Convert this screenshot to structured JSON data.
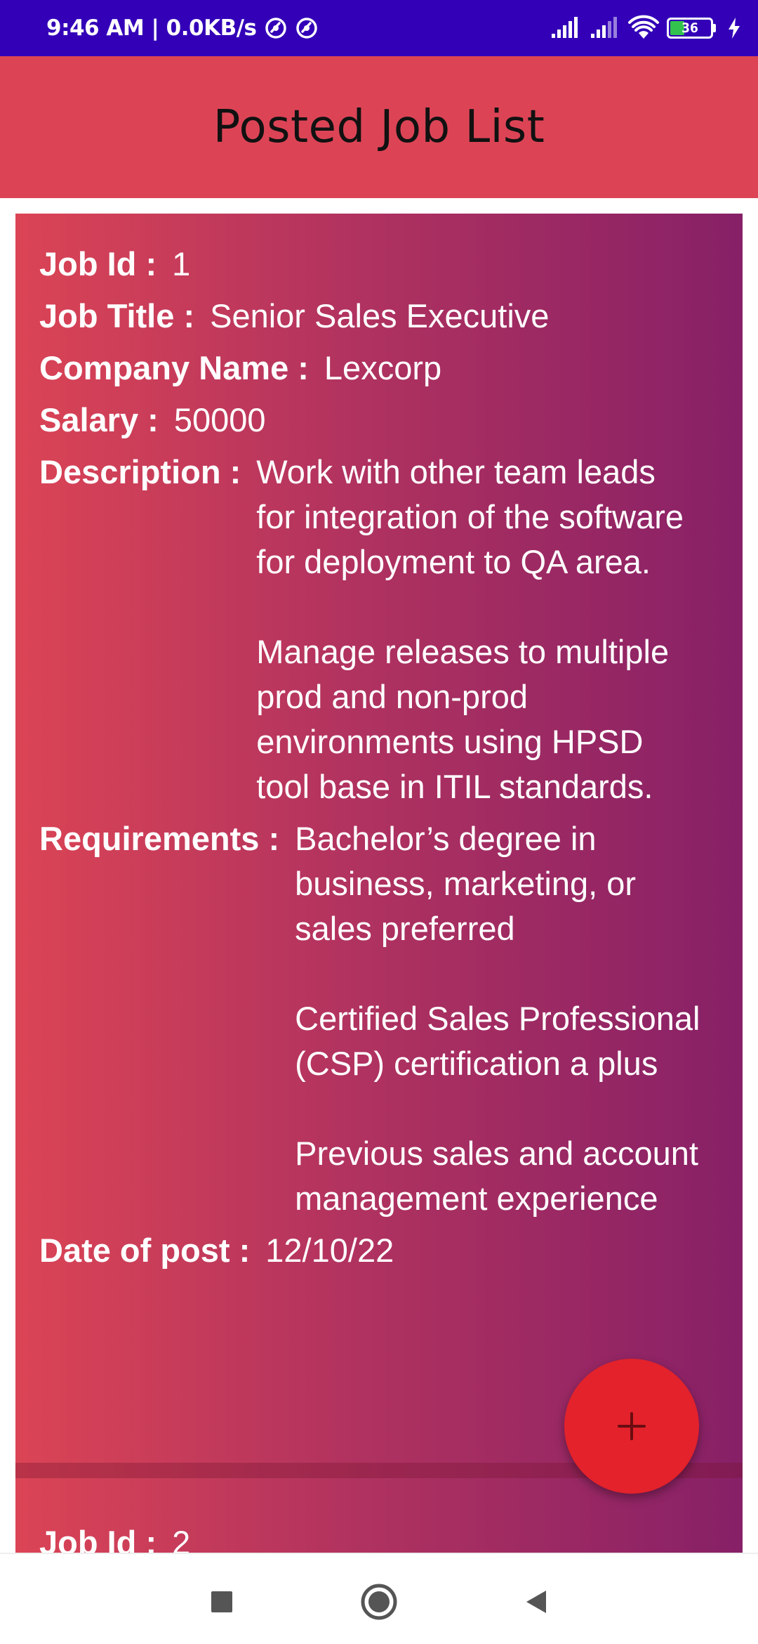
{
  "status_bar": {
    "time_speed": "9:46 AM | 0.0KB/s",
    "battery_level": "36",
    "battery_fraction": 0.36,
    "background_color": "#3300b8"
  },
  "app_bar": {
    "title": "Posted Job List",
    "background_color": "#dc4456"
  },
  "jobs": [
    {
      "job_id_label": "Job Id :",
      "job_id": "1",
      "job_title_label": "Job Title :",
      "job_title": "Senior Sales Executive",
      "company_label": "Company Name :",
      "company": "Lexcorp",
      "salary_label": "Salary :",
      "salary": "50000",
      "description_label": "Description :",
      "description": "Work with other team leads for integration of the software for deployment to QA area.\n\nManage releases to multiple prod and non-prod environments using HPSD tool base in ITIL standards.",
      "requirements_label": "Requirements :",
      "requirements": "Bachelor’s degree in business, marketing, or sales preferred\n\nCertified Sales Professional (CSP) certification a plus\n\nPrevious sales and account management experience",
      "date_label": "Date of post :",
      "date": "12/10/22"
    },
    {
      "job_id_label": "Job Id :",
      "job_id": "2"
    }
  ],
  "fab": {
    "icon": "plus-icon",
    "color": "#e3222b"
  },
  "nav_bar": {
    "recent_icon": "square-icon",
    "home_icon": "circle-home-icon",
    "back_icon": "triangle-back-icon"
  }
}
